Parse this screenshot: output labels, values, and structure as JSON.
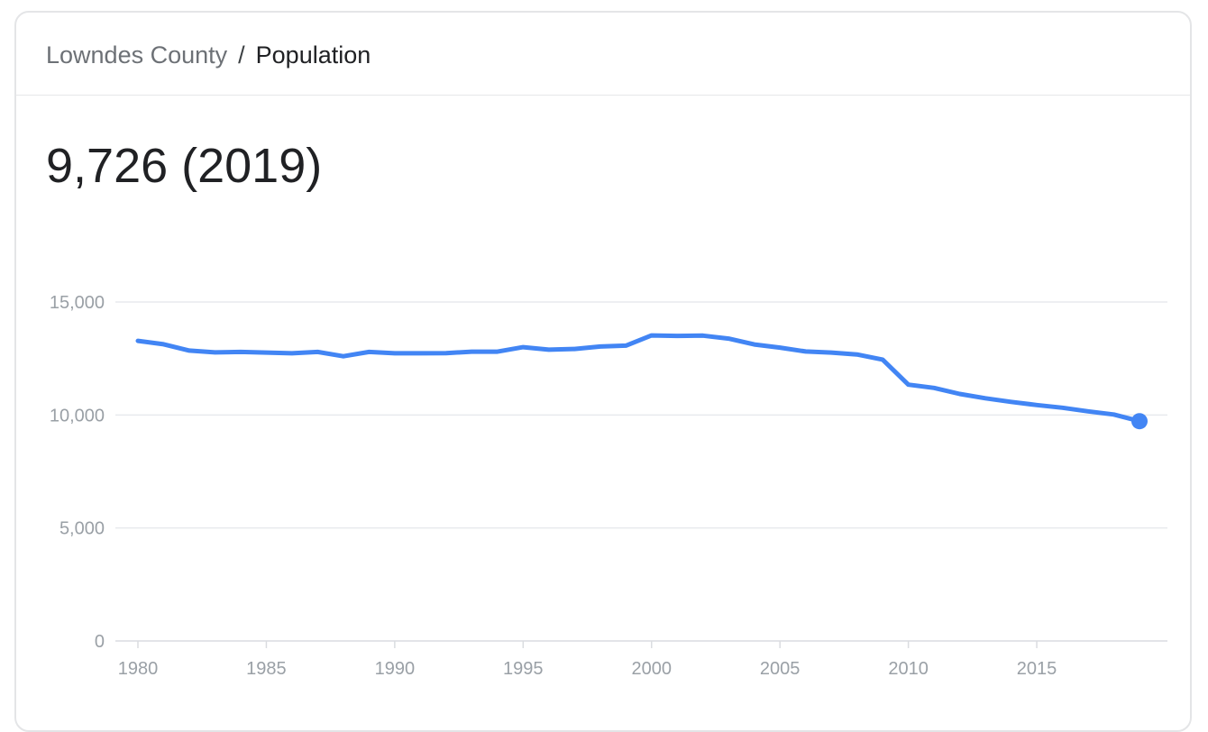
{
  "breadcrumb": {
    "county": "Lowndes County",
    "separator": "/",
    "current": "Population"
  },
  "headline_value": "9,726 (2019)",
  "colors": {
    "line": "#4285f4",
    "grid": "#e8eaed",
    "tick_text": "#9aa0a6"
  },
  "chart_data": {
    "type": "line",
    "title": "",
    "xlabel": "",
    "ylabel": "",
    "xlim": [
      1980,
      2019
    ],
    "ylim": [
      0,
      15000
    ],
    "grid": true,
    "x_ticks": [
      1980,
      1985,
      1990,
      1995,
      2000,
      2005,
      2010,
      2015
    ],
    "x_tick_labels": [
      "1980",
      "1985",
      "1990",
      "1995",
      "2000",
      "2005",
      "2010",
      "2015"
    ],
    "y_ticks": [
      0,
      5000,
      10000,
      15000
    ],
    "y_tick_labels": [
      "0",
      "5,000",
      "10,000",
      "15,000"
    ],
    "x": [
      1980,
      1981,
      1982,
      1983,
      1984,
      1985,
      1986,
      1987,
      1988,
      1989,
      1990,
      1991,
      1992,
      1993,
      1994,
      1995,
      1996,
      1997,
      1998,
      1999,
      2000,
      2001,
      2002,
      2003,
      2004,
      2005,
      2006,
      2007,
      2008,
      2009,
      2010,
      2011,
      2012,
      2013,
      2014,
      2015,
      2016,
      2017,
      2018,
      2019
    ],
    "series": [
      {
        "values": [
          13280,
          13130,
          12850,
          12770,
          12790,
          12760,
          12730,
          12790,
          12600,
          12790,
          12730,
          12730,
          12740,
          12800,
          12800,
          13000,
          12890,
          12920,
          13030,
          13070,
          13520,
          13500,
          13510,
          13380,
          13120,
          12980,
          12810,
          12760,
          12680,
          12450,
          11340,
          11200,
          10930,
          10740,
          10580,
          10440,
          10320,
          10160,
          10020,
          9726
        ]
      }
    ]
  }
}
